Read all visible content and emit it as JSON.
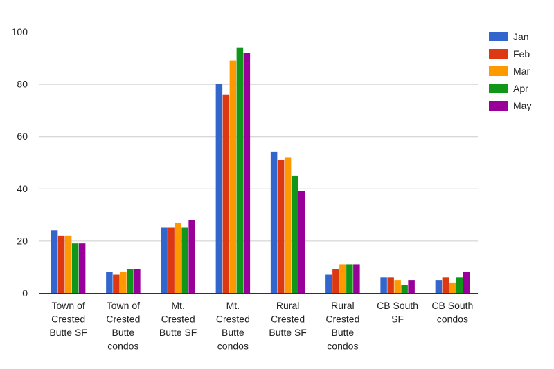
{
  "chart_data": {
    "type": "bar",
    "title": "",
    "xlabel": "",
    "ylabel": "",
    "ylim": [
      0,
      100
    ],
    "yticks": [
      0,
      20,
      40,
      60,
      80,
      100
    ],
    "grid": true,
    "legend_position": "right",
    "categories": [
      [
        "Town of",
        "Crested",
        "Butte SF"
      ],
      [
        "Town of",
        "Crested",
        "Butte",
        "condos"
      ],
      [
        "Mt.",
        "Crested",
        "Butte SF"
      ],
      [
        "Mt.",
        "Crested",
        "Butte",
        "condos"
      ],
      [
        "Rural",
        "Crested",
        "Butte SF"
      ],
      [
        "Rural",
        "Crested",
        "Butte",
        "condos"
      ],
      [
        "CB South",
        "SF"
      ],
      [
        "CB South",
        "condos"
      ]
    ],
    "series": [
      {
        "name": "Jan",
        "color": "#3366cc",
        "values": [
          24,
          8,
          25,
          80,
          54,
          7,
          6,
          5
        ]
      },
      {
        "name": "Feb",
        "color": "#dc3912",
        "values": [
          22,
          7,
          25,
          76,
          51,
          9,
          6,
          6
        ]
      },
      {
        "name": "Mar",
        "color": "#ff9900",
        "values": [
          22,
          8,
          27,
          89,
          52,
          11,
          5,
          4
        ]
      },
      {
        "name": "Apr",
        "color": "#109618",
        "values": [
          19,
          9,
          25,
          94,
          45,
          11,
          3,
          6
        ]
      },
      {
        "name": "May",
        "color": "#990099",
        "values": [
          19,
          9,
          28,
          92,
          39,
          11,
          5,
          8
        ]
      }
    ]
  }
}
